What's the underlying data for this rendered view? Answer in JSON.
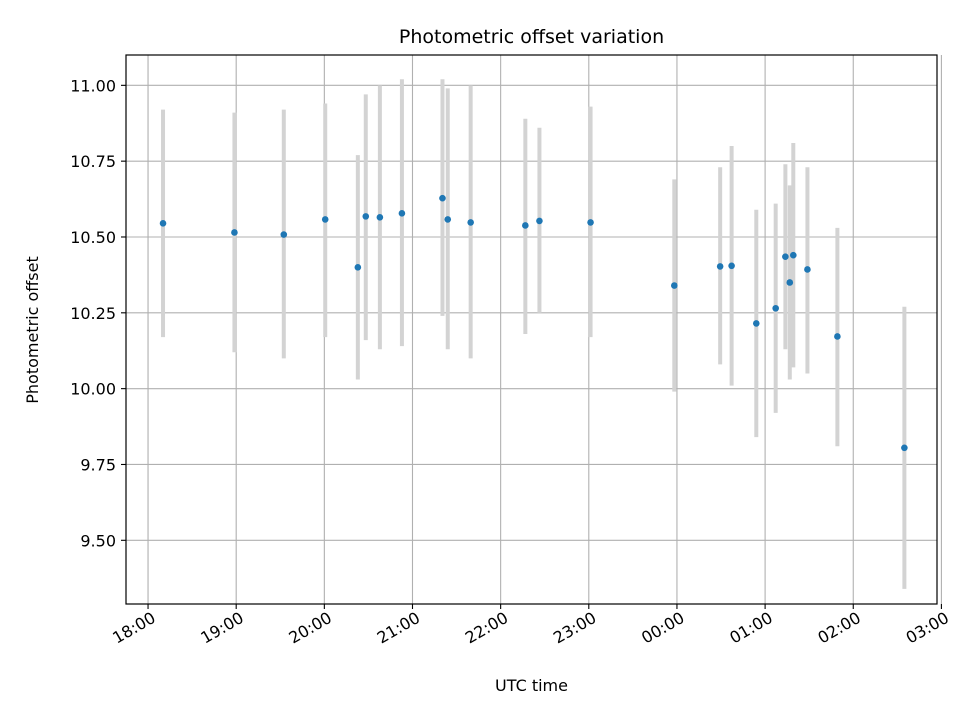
{
  "chart_data": {
    "type": "scatter",
    "title": "Photometric offset variation",
    "xlabel": "UTC time",
    "ylabel": "Photometric offset",
    "grid": true,
    "x_unit": "hours since 18:00 UTC",
    "xlim": [
      -0.25,
      8.95
    ],
    "ylim": [
      9.29,
      11.1
    ],
    "xticks": [
      {
        "value": 0,
        "label": "18:00"
      },
      {
        "value": 1,
        "label": "19:00"
      },
      {
        "value": 2,
        "label": "20:00"
      },
      {
        "value": 3,
        "label": "21:00"
      },
      {
        "value": 4,
        "label": "22:00"
      },
      {
        "value": 5,
        "label": "23:00"
      },
      {
        "value": 6,
        "label": "00:00"
      },
      {
        "value": 7,
        "label": "01:00"
      },
      {
        "value": 8,
        "label": "02:00"
      },
      {
        "value": 9,
        "label": "03:00"
      }
    ],
    "yticks": [
      {
        "value": 9.5,
        "label": "9.50"
      },
      {
        "value": 9.75,
        "label": "9.75"
      },
      {
        "value": 10.0,
        "label": "10.00"
      },
      {
        "value": 10.25,
        "label": "10.25"
      },
      {
        "value": 10.5,
        "label": "10.50"
      },
      {
        "value": 10.75,
        "label": "10.75"
      },
      {
        "value": 11.0,
        "label": "11.00"
      }
    ],
    "series": [
      {
        "name": "offset",
        "marker_color": "#1f77b4",
        "errorbar_color": "#d3d3d3",
        "points": [
          {
            "x": 0.17,
            "y": 10.545,
            "low": 10.17,
            "high": 10.92
          },
          {
            "x": 0.98,
            "y": 10.515,
            "low": 10.12,
            "high": 10.91
          },
          {
            "x": 1.54,
            "y": 10.508,
            "low": 10.1,
            "high": 10.92
          },
          {
            "x": 2.01,
            "y": 10.558,
            "low": 10.17,
            "high": 10.94
          },
          {
            "x": 2.38,
            "y": 10.4,
            "low": 10.03,
            "high": 10.77
          },
          {
            "x": 2.47,
            "y": 10.568,
            "low": 10.16,
            "high": 10.97
          },
          {
            "x": 2.63,
            "y": 10.565,
            "low": 10.13,
            "high": 11.0
          },
          {
            "x": 2.88,
            "y": 10.578,
            "low": 10.14,
            "high": 11.02
          },
          {
            "x": 3.34,
            "y": 10.628,
            "low": 10.24,
            "high": 11.02
          },
          {
            "x": 3.4,
            "y": 10.558,
            "low": 10.13,
            "high": 10.99
          },
          {
            "x": 3.66,
            "y": 10.548,
            "low": 10.1,
            "high": 11.0
          },
          {
            "x": 4.28,
            "y": 10.538,
            "low": 10.18,
            "high": 10.89
          },
          {
            "x": 4.44,
            "y": 10.553,
            "low": 10.25,
            "high": 10.86
          },
          {
            "x": 5.02,
            "y": 10.548,
            "low": 10.17,
            "high": 10.93
          },
          {
            "x": 5.97,
            "y": 10.34,
            "low": 9.99,
            "high": 10.69
          },
          {
            "x": 6.49,
            "y": 10.403,
            "low": 10.08,
            "high": 10.73
          },
          {
            "x": 6.62,
            "y": 10.405,
            "low": 10.01,
            "high": 10.8
          },
          {
            "x": 6.9,
            "y": 10.215,
            "low": 9.84,
            "high": 10.59
          },
          {
            "x": 7.12,
            "y": 10.265,
            "low": 9.92,
            "high": 10.61
          },
          {
            "x": 7.23,
            "y": 10.435,
            "low": 10.13,
            "high": 10.74
          },
          {
            "x": 7.28,
            "y": 10.35,
            "low": 10.03,
            "high": 10.67
          },
          {
            "x": 7.32,
            "y": 10.44,
            "low": 10.07,
            "high": 10.81
          },
          {
            "x": 7.48,
            "y": 10.393,
            "low": 10.05,
            "high": 10.73
          },
          {
            "x": 7.82,
            "y": 10.172,
            "low": 9.81,
            "high": 10.53
          },
          {
            "x": 8.58,
            "y": 9.805,
            "low": 9.34,
            "high": 10.27
          }
        ]
      }
    ]
  }
}
